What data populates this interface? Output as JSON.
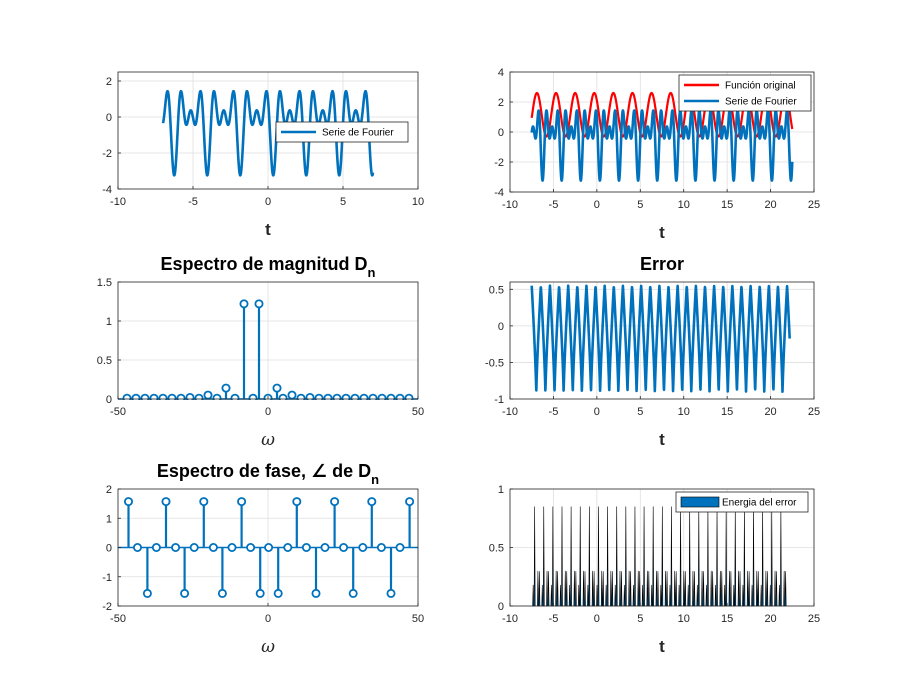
{
  "colors": {
    "blue": "#0072BD",
    "red": "#FF0000",
    "grid": "#DFDFDF",
    "axis": "#262626"
  },
  "chart_data": [
    {
      "type": "line",
      "id": "p1",
      "title": "",
      "title_sub": "",
      "xlabel": "t",
      "ylabel": "",
      "xlim": [
        -10,
        10
      ],
      "ylim": [
        -4,
        2.5
      ],
      "xticks": [
        -10,
        -5,
        0,
        5,
        10
      ],
      "yticks": [
        -4,
        -2,
        0,
        2
      ],
      "legend": {
        "location": "right-center",
        "entries": [
          "Serie de Fourier"
        ]
      },
      "series": [
        {
          "name": "Serie de Fourier",
          "color": "blue",
          "x_range": [
            -7,
            7
          ],
          "amplitude": [
            0.78,
            1.3,
            1.12
          ],
          "period": 2.2,
          "phase": -1.0
        }
      ]
    },
    {
      "type": "line",
      "id": "p2",
      "title": "",
      "title_sub": "",
      "xlabel": "t",
      "ylabel": "",
      "xlim": [
        -10,
        25
      ],
      "ylim": [
        -4,
        4
      ],
      "xticks": [
        -10,
        -5,
        0,
        5,
        10,
        15,
        20,
        25
      ],
      "yticks": [
        -4,
        -2,
        0,
        2,
        4
      ],
      "legend": {
        "location": "top-right",
        "entries": [
          "Función original",
          "Serie de Fourier"
        ]
      },
      "series": [
        {
          "name": "Función original",
          "color": "red",
          "x_range": [
            -7.5,
            22.5
          ],
          "shape": "cosine",
          "amplitude": 2.9,
          "period": 2.2
        },
        {
          "name": "Serie de Fourier",
          "color": "blue",
          "x_range": [
            -7.5,
            22.5
          ],
          "amplitude": [
            0.78,
            1.3,
            1.12
          ],
          "period": 2.2,
          "phase": -1.0
        }
      ]
    },
    {
      "type": "stem",
      "id": "p3",
      "title": "Espectro de magnitud D",
      "title_sub": "n",
      "xlabel": "ω",
      "ylabel": "",
      "xlim": [
        -50,
        50
      ],
      "ylim": [
        0,
        1.5
      ],
      "xticks": [
        -50,
        0,
        50
      ],
      "yticks": [
        0,
        0.5,
        1,
        1.5
      ],
      "x": [
        -47,
        -44,
        -41,
        -38,
        -35,
        -32,
        -29,
        -26,
        -23,
        -20,
        -17,
        -14,
        -11,
        -8,
        -5,
        -3,
        0,
        3,
        5,
        8,
        11,
        14,
        17,
        20,
        23,
        26,
        29,
        32,
        35,
        38,
        41,
        44,
        47
      ],
      "y": [
        0.01,
        0.01,
        0.01,
        0.01,
        0.01,
        0.01,
        0.01,
        0.02,
        0.01,
        0.05,
        0.01,
        0.14,
        0.01,
        1.22,
        0.01,
        1.22,
        0.01,
        0.14,
        0.01,
        0.05,
        0.01,
        0.02,
        0.01,
        0.01,
        0.01,
        0.01,
        0.01,
        0.01,
        0.01,
        0.01,
        0.01,
        0.01,
        0.01
      ]
    },
    {
      "type": "line",
      "id": "p4",
      "title": "Error",
      "title_sub": "",
      "xlabel": "t",
      "ylabel": "",
      "xlim": [
        -10,
        25
      ],
      "ylim": [
        -1,
        0.6
      ],
      "xticks": [
        -10,
        -5,
        0,
        5,
        10,
        15,
        20,
        25
      ],
      "yticks": [
        -1,
        -0.5,
        0,
        0.5
      ],
      "series": [
        {
          "name": "",
          "color": "blue",
          "x_range": [
            -7.5,
            22.2
          ],
          "max": 0.55,
          "min": -0.92,
          "period": 1.05
        }
      ]
    },
    {
      "type": "stem",
      "id": "p5",
      "title": "Espectro de fase, ∠ de D",
      "title_sub": "n",
      "xlabel": "ω",
      "ylabel": "",
      "xlim": [
        -50,
        50
      ],
      "ylim": [
        -2,
        2
      ],
      "xticks": [
        -50,
        0,
        50
      ],
      "yticks": [
        -2,
        -1,
        0,
        1,
        2
      ],
      "x": [
        -46.5,
        -43.5,
        -40.2,
        -37.2,
        -34.0,
        -30.8,
        -27.8,
        -24.6,
        -21.4,
        -18.2,
        -15.2,
        -12.0,
        -8.8,
        -5.8,
        -2.6,
        0.2,
        3.4,
        6.6,
        9.6,
        12.8,
        16.0,
        19.0,
        22.2,
        25.2,
        28.4,
        31.6,
        34.6,
        37.8,
        41.0,
        44.0,
        47.2
      ],
      "y": [
        1.57,
        0,
        -1.57,
        0,
        1.57,
        0,
        -1.57,
        0,
        1.57,
        0,
        -1.57,
        0,
        1.57,
        0,
        -1.57,
        0,
        -1.57,
        0,
        1.57,
        0,
        -1.57,
        0,
        1.57,
        0,
        -1.57,
        0,
        1.57,
        0,
        -1.57,
        0,
        1.57
      ]
    },
    {
      "type": "area",
      "id": "p6",
      "title": "",
      "title_sub": "",
      "xlabel": "t",
      "ylabel": "",
      "xlim": [
        -10,
        25
      ],
      "ylim": [
        0,
        1
      ],
      "xticks": [
        -10,
        -5,
        0,
        5,
        10,
        15,
        20,
        25
      ],
      "yticks": [
        0,
        0.5,
        1
      ],
      "legend": {
        "location": "top-right",
        "entries": [
          "Energia del error"
        ]
      },
      "series": [
        {
          "name": "Energia del error",
          "color": "blue",
          "x_range": [
            -7.5,
            22.2
          ],
          "peaks": [
            0.85,
            0.3
          ],
          "period": 1.05
        }
      ]
    }
  ]
}
